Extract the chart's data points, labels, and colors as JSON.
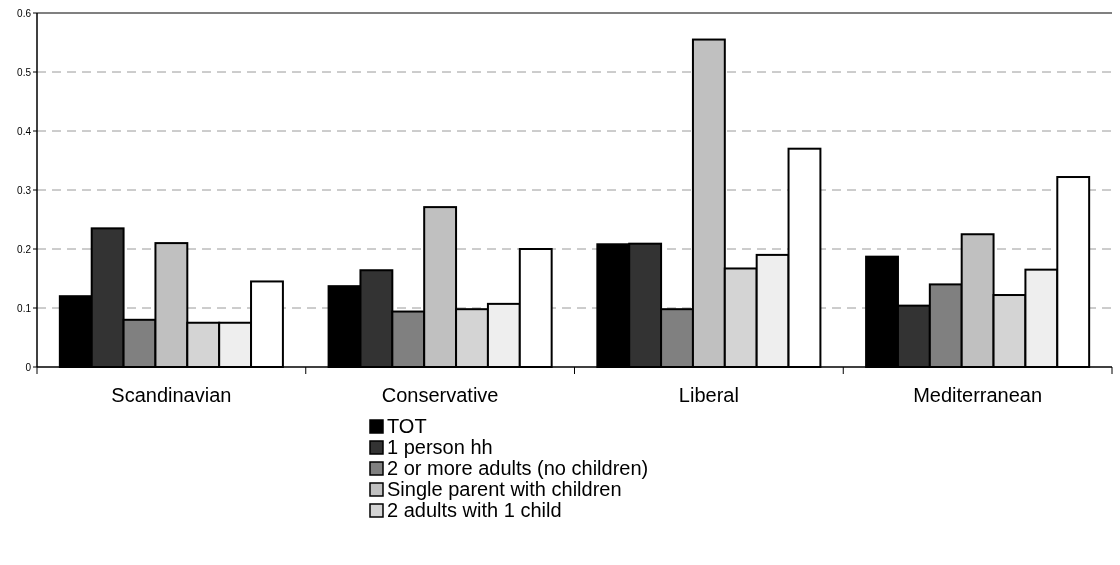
{
  "chart_data": {
    "type": "bar",
    "categories": [
      "Scandinavian",
      "Conservative",
      "Liberal",
      "Mediterranean"
    ],
    "series": [
      {
        "name": "TOT",
        "color": "#000000",
        "values": [
          0.12,
          0.137,
          0.208,
          0.187
        ]
      },
      {
        "name": "1 person hh",
        "color": "#333333",
        "values": [
          0.235,
          0.164,
          0.209,
          0.104
        ]
      },
      {
        "name": "2 or more adults (no children)",
        "color": "#808080",
        "values": [
          0.08,
          0.094,
          0.098,
          0.14
        ]
      },
      {
        "name": "Single parent with children",
        "color": "#c0c0c0",
        "values": [
          0.21,
          0.271,
          0.555,
          0.225
        ]
      },
      {
        "name": "2 adults with 1 child",
        "color": "#d4d4d4",
        "values": [
          0.075,
          0.098,
          0.167,
          0.122
        ]
      },
      {
        "color": "#eeeeee",
        "values": [
          0.075,
          0.107,
          0.19,
          0.165
        ]
      },
      {
        "color": "#ffffff",
        "values": [
          0.145,
          0.2,
          0.37,
          0.322
        ]
      }
    ],
    "ylim": [
      0,
      0.6
    ],
    "yticks": [
      0,
      0.1,
      0.2,
      0.3,
      0.4,
      0.5,
      0.6
    ],
    "grid": "y",
    "legend": "bottom"
  }
}
